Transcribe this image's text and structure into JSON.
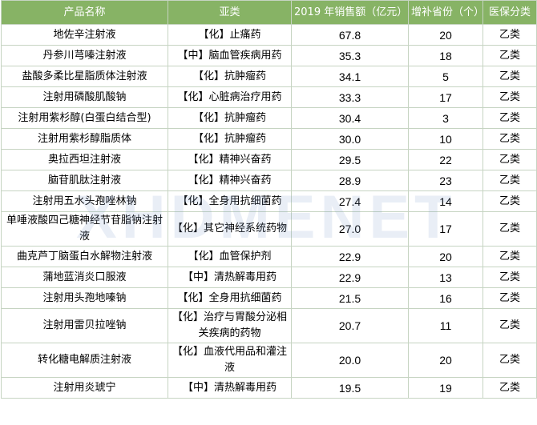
{
  "table": {
    "headers": [
      "产品名称",
      "亚类",
      "2019 年销售额（亿元）",
      "增补省份（个）",
      "医保分类"
    ],
    "rows": [
      [
        "地佐辛注射液",
        "【化】止痛药",
        "67.8",
        "20",
        "乙类"
      ],
      [
        "丹参川芎嗪注射液",
        "【中】脑血管疾病用药",
        "35.3",
        "18",
        "乙类"
      ],
      [
        "盐酸多柔比星脂质体注射液",
        "【化】抗肿瘤药",
        "34.1",
        "5",
        "乙类"
      ],
      [
        "注射用磷酸肌酸钠",
        "【化】心脏病治疗用药",
        "33.3",
        "17",
        "乙类"
      ],
      [
        "注射用紫杉醇(白蛋白结合型)",
        "【化】抗肿瘤药",
        "30.4",
        "3",
        "乙类"
      ],
      [
        "注射用紫杉醇脂质体",
        "【化】抗肿瘤药",
        "30.0",
        "10",
        "乙类"
      ],
      [
        "奥拉西坦注射液",
        "【化】精神兴奋药",
        "29.5",
        "22",
        "乙类"
      ],
      [
        "脑苷肌肽注射液",
        "【化】精神兴奋药",
        "28.9",
        "23",
        "乙类"
      ],
      [
        "注射用五水头孢唑林钠",
        "【化】全身用抗细菌药",
        "27.4",
        "14",
        "乙类"
      ],
      [
        "单唾液酸四己糖神经节苷脂钠注射液",
        "【化】其它神经系统药物",
        "27.0",
        "17",
        "乙类"
      ],
      [
        "曲克芦丁脑蛋白水解物注射液",
        "【化】血管保护剂",
        "22.9",
        "20",
        "乙类"
      ],
      [
        "蒲地蓝消炎口服液",
        "【中】清热解毒用药",
        "22.9",
        "13",
        "乙类"
      ],
      [
        "注射用头孢地嗪钠",
        "【化】全身用抗细菌药",
        "21.5",
        "16",
        "乙类"
      ],
      [
        "注射用雷贝拉唑钠",
        "【化】治疗与胃酸分泌相关疾病的药物",
        "20.7",
        "11",
        "乙类"
      ],
      [
        "转化糖电解质注射液",
        "【化】血液代用品和灌注液",
        "20.0",
        "20",
        "乙类"
      ],
      [
        "注射用炎琥宁",
        "【中】清热解毒用药",
        "19.5",
        "19",
        "乙类"
      ]
    ]
  },
  "watermark": "XHDMENET"
}
